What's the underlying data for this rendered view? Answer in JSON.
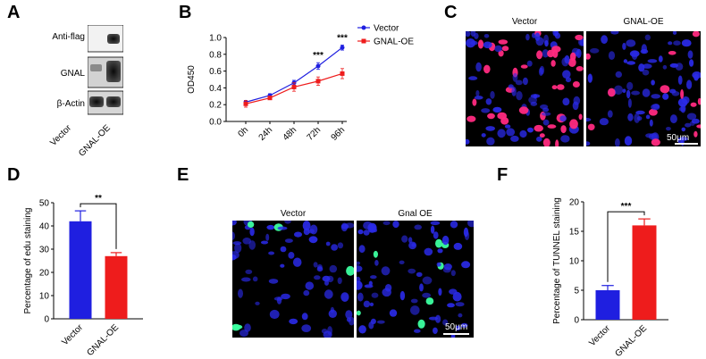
{
  "panels": {
    "A": {
      "letter": "A",
      "rows": [
        "Anti-flag",
        "GNAL",
        "β-Actin"
      ],
      "lanes": [
        "Vector",
        "GNAL-OE"
      ]
    },
    "B": {
      "letter": "B",
      "legend": [
        "Vector",
        "GNAL-OE"
      ],
      "sig_marks": [
        "***",
        "***"
      ]
    },
    "C": {
      "letter": "C",
      "titles": [
        "Vector",
        "GNAL-OE"
      ],
      "scalebar": "50μm"
    },
    "D": {
      "letter": "D",
      "sig": "**"
    },
    "E": {
      "letter": "E",
      "titles": [
        "Vector",
        "Gnal OE"
      ],
      "scalebar": "50μm"
    },
    "F": {
      "letter": "F",
      "sig": "***"
    }
  },
  "colors": {
    "vector": "#1f1fe0",
    "gnal": "#ee1c1c",
    "nucleus": "#2a2ae8",
    "edu": "#ff2a80",
    "tunnel": "#3cffa0"
  },
  "chart_data": [
    {
      "type": "line",
      "panel": "B",
      "xlabel": "",
      "ylabel": "OD450",
      "x": [
        "0h",
        "24h",
        "48h",
        "72h",
        "96h"
      ],
      "ylim": [
        0,
        1.0
      ],
      "yticks": [
        0.0,
        0.2,
        0.4,
        0.6,
        0.8,
        1.0
      ],
      "series": [
        {
          "name": "Vector",
          "values": [
            0.23,
            0.31,
            0.46,
            0.66,
            0.88
          ],
          "errors": [
            0.02,
            0.02,
            0.03,
            0.04,
            0.03
          ]
        },
        {
          "name": "GNAL-OE",
          "values": [
            0.21,
            0.28,
            0.41,
            0.48,
            0.57
          ],
          "errors": [
            0.04,
            0.02,
            0.05,
            0.05,
            0.06
          ]
        }
      ],
      "annotations": [
        {
          "x": "72h",
          "text": "***"
        },
        {
          "x": "96h",
          "text": "***"
        }
      ]
    },
    {
      "type": "bar",
      "panel": "D",
      "ylabel": "Percentage of edu staining",
      "categories": [
        "Vector",
        "GNAL-OE"
      ],
      "values": [
        42,
        27
      ],
      "errors": [
        4.5,
        1.5
      ],
      "ylim": [
        0,
        50
      ],
      "yticks": [
        0,
        10,
        20,
        30,
        40,
        50
      ],
      "annotation": "**"
    },
    {
      "type": "bar",
      "panel": "F",
      "ylabel": "Percentage of TUNNEL staining",
      "categories": [
        "Vector",
        "GNAL-OE"
      ],
      "values": [
        5,
        16
      ],
      "errors": [
        0.8,
        1.1
      ],
      "ylim": [
        0,
        20
      ],
      "yticks": [
        0,
        5,
        10,
        15,
        20
      ],
      "annotation": "***"
    }
  ]
}
